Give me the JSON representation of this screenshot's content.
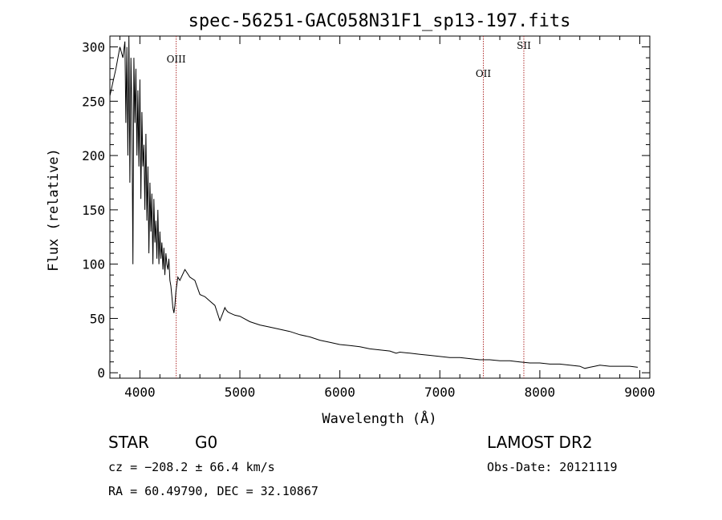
{
  "chart_data": {
    "type": "line",
    "title": "spec-56251-GAC058N31F1_sp13-197.fits",
    "xlabel": "Wavelength (Å)",
    "ylabel": "Flux (relative)",
    "xlim": [
      3700,
      9100
    ],
    "ylim": [
      -5,
      310
    ],
    "xticks": [
      4000,
      5000,
      6000,
      7000,
      8000,
      9000
    ],
    "yticks": [
      0,
      50,
      100,
      150,
      200,
      250,
      300
    ],
    "lines": [
      {
        "label": "OIII",
        "x": 4363
      },
      {
        "label": "OII",
        "x": 7435
      },
      {
        "label": "SII",
        "x": 7840
      }
    ],
    "series": [
      {
        "name": "flux",
        "x": [
          3700,
          3760,
          3800,
          3830,
          3850,
          3860,
          3870,
          3880,
          3890,
          3900,
          3910,
          3920,
          3930,
          3940,
          3950,
          3960,
          3970,
          3980,
          3990,
          4000,
          4010,
          4020,
          4030,
          4040,
          4050,
          4060,
          4070,
          4080,
          4090,
          4100,
          4110,
          4120,
          4130,
          4140,
          4150,
          4160,
          4170,
          4180,
          4190,
          4200,
          4210,
          4220,
          4230,
          4240,
          4250,
          4260,
          4270,
          4280,
          4290,
          4300,
          4310,
          4320,
          4330,
          4340,
          4350,
          4360,
          4380,
          4400,
          4450,
          4500,
          4550,
          4600,
          4650,
          4700,
          4750,
          4800,
          4830,
          4850,
          4861,
          4880,
          4900,
          4950,
          5000,
          5100,
          5200,
          5300,
          5400,
          5500,
          5600,
          5700,
          5800,
          5900,
          6000,
          6100,
          6200,
          6300,
          6400,
          6500,
          6563,
          6600,
          6700,
          6800,
          6900,
          7000,
          7100,
          7200,
          7300,
          7400,
          7500,
          7600,
          7700,
          7800,
          7900,
          8000,
          8100,
          8200,
          8300,
          8400,
          8450,
          8500,
          8550,
          8600,
          8700,
          8800,
          8900,
          8980
        ],
        "y": [
          255,
          280,
          300,
          290,
          305,
          230,
          300,
          200,
          310,
          175,
          290,
          240,
          100,
          290,
          230,
          280,
          200,
          260,
          190,
          270,
          160,
          240,
          190,
          210,
          150,
          220,
          140,
          190,
          110,
          175,
          130,
          165,
          100,
          160,
          120,
          140,
          105,
          150,
          100,
          130,
          105,
          120,
          95,
          115,
          90,
          110,
          100,
          95,
          105,
          85,
          80,
          70,
          60,
          55,
          62,
          75,
          88,
          85,
          95,
          88,
          85,
          72,
          70,
          66,
          62,
          48,
          55,
          60,
          58,
          56,
          55,
          53,
          52,
          47,
          44,
          42,
          40,
          38,
          35,
          33,
          30,
          28,
          26,
          25,
          24,
          22,
          21,
          20,
          18,
          19,
          18,
          17,
          16,
          15,
          14,
          14,
          13,
          12,
          12,
          11,
          11,
          10,
          9,
          9,
          8,
          8,
          7,
          6,
          4,
          5,
          6,
          7,
          6,
          6,
          6,
          5
        ]
      }
    ]
  },
  "info": {
    "object_class": "STAR",
    "subclass": "G0",
    "survey": "LAMOST DR2",
    "cz": "cz = −208.2 ± 66.4 km/s",
    "obs_date": "Obs-Date: 20121119",
    "coords": "RA =  60.49790, DEC =  32.10867"
  }
}
